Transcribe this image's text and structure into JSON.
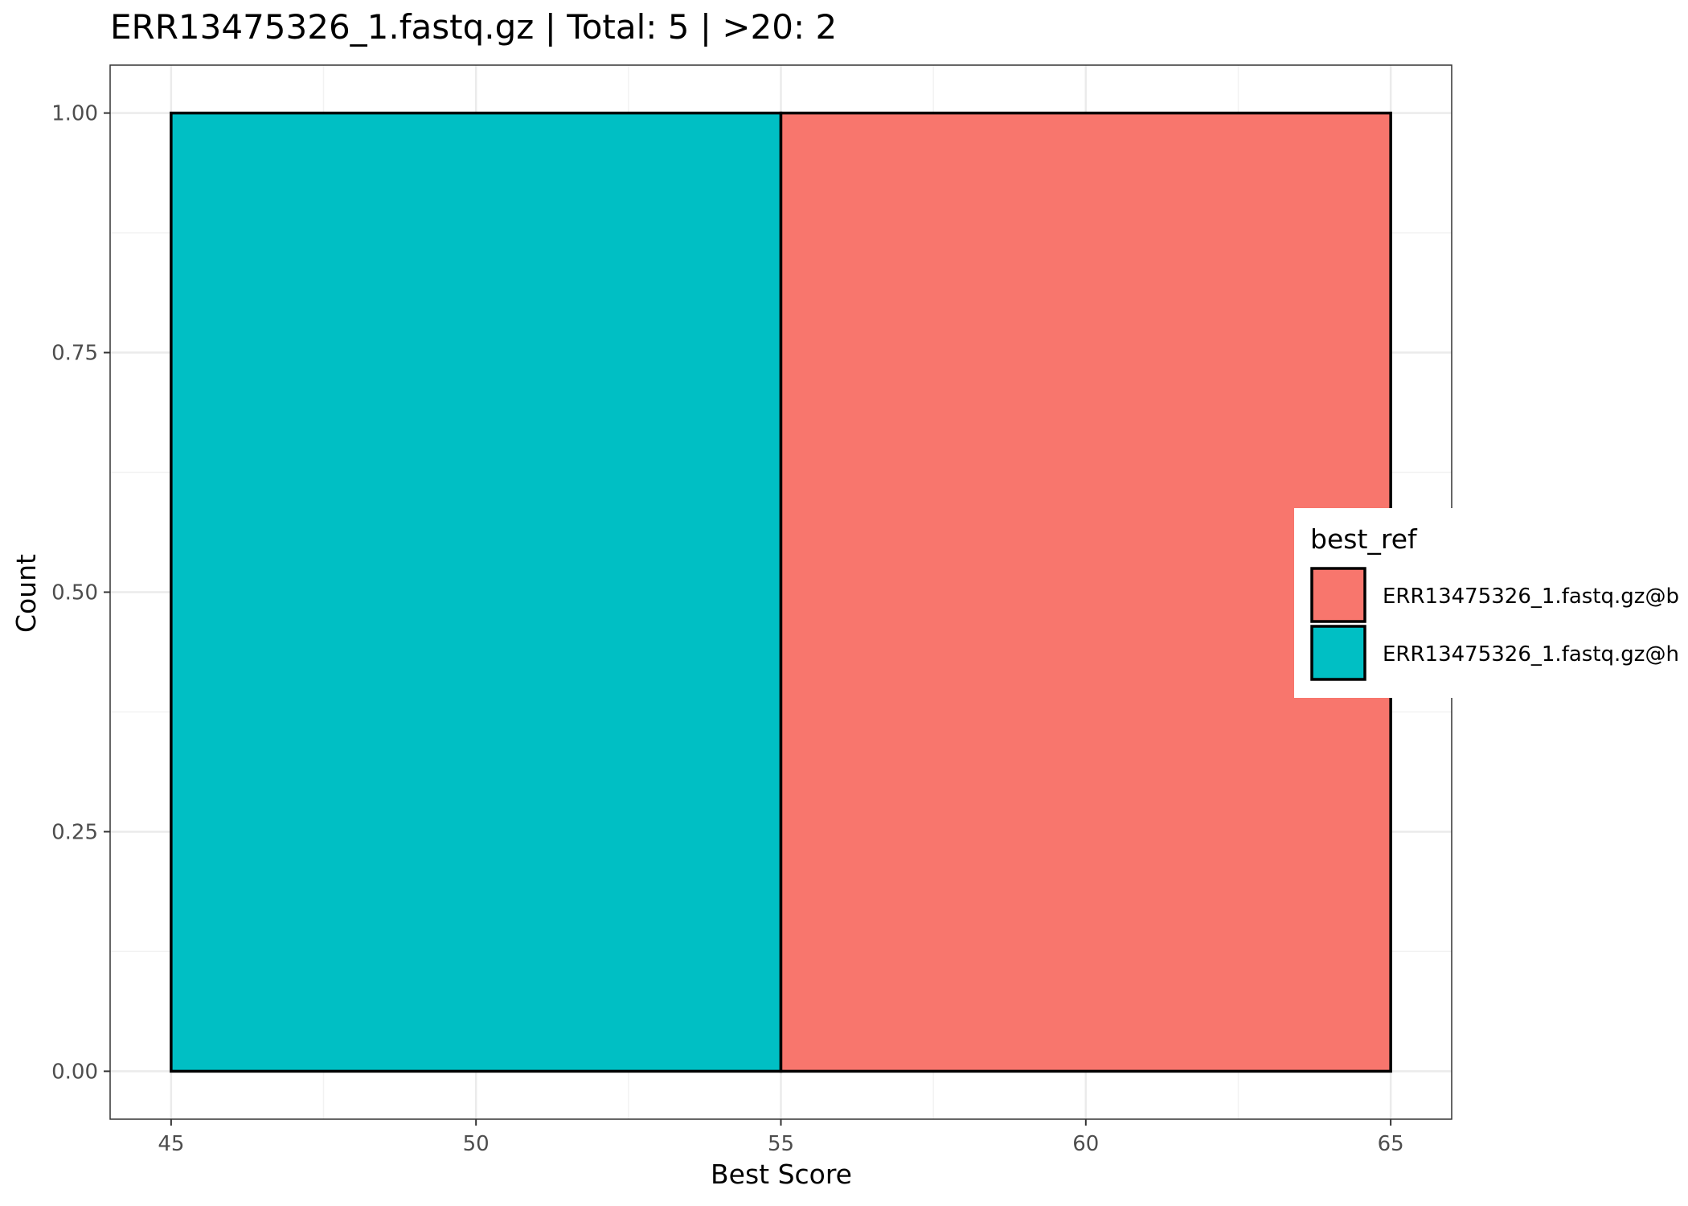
{
  "chart_data": {
    "type": "bar",
    "title": "ERR13475326_1.fastq.gz | Total: 5 | >20: 2",
    "xlabel": "Best Score",
    "ylabel": "Count",
    "xlim": [
      44.0,
      66.0
    ],
    "ylim": [
      -0.05,
      1.05
    ],
    "x_ticks": [
      45,
      50,
      55,
      60,
      65
    ],
    "y_ticks": [
      0.0,
      0.25,
      0.5,
      0.75,
      1.0
    ],
    "y_tick_labels": [
      "0.00",
      "0.25",
      "0.50",
      "0.75",
      "1.00"
    ],
    "grid": true,
    "bars": [
      {
        "x_start": 45,
        "x_end": 55,
        "value": 1,
        "series": 1
      },
      {
        "x_start": 55,
        "x_end": 65,
        "value": 1,
        "series": 0
      }
    ],
    "legend": {
      "title": "best_ref",
      "placement": "right",
      "entries": [
        {
          "label": "ERR13475326_1.fastq.gz@b",
          "color": "#F8766D"
        },
        {
          "label": "ERR13475326_1.fastq.gz@h",
          "color": "#00BFC4"
        }
      ]
    }
  }
}
